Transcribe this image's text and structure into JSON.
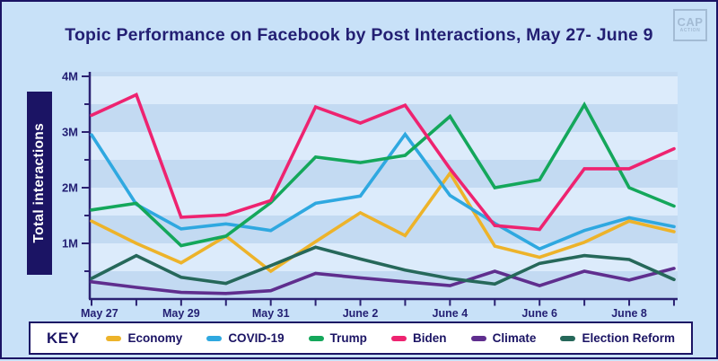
{
  "header": {
    "title": "Topic Performance on Facebook by Post Interactions, May 27- June 9",
    "logo_line1": "CAP",
    "logo_line2": "ACTION"
  },
  "legend": {
    "key_label": "KEY"
  },
  "chart_data": {
    "type": "line",
    "title": "Topic Performance on Facebook by Post Interactions, May 27- June 9",
    "ylabel": "Total interactions",
    "xlabel": "",
    "x": [
      "May 27",
      "May 28",
      "May 29",
      "May 30",
      "May 31",
      "June 1",
      "June 2",
      "June 3",
      "June 4",
      "June 5",
      "June 6",
      "June 7",
      "June 8",
      "June 9"
    ],
    "x_tick_labels_shown": [
      "May 27",
      "May 29",
      "May 31",
      "June 2",
      "June 4",
      "June 6",
      "June 8"
    ],
    "y_tick_labels": [
      "1M",
      "2M",
      "3M",
      "4M"
    ],
    "ylim": [
      0,
      4.1
    ],
    "units": "millions of interactions",
    "grid": "alternating horizontal bands every 0.5M",
    "legend_position": "bottom",
    "series": [
      {
        "name": "Economy",
        "color": "#edb32a",
        "values": [
          1.4,
          1.0,
          0.65,
          1.13,
          0.5,
          1.03,
          1.55,
          1.14,
          2.26,
          0.95,
          0.75,
          1.02,
          1.4,
          1.21
        ]
      },
      {
        "name": "COVID-19",
        "color": "#2fa8e0",
        "values": [
          2.95,
          1.7,
          1.26,
          1.35,
          1.23,
          1.72,
          1.85,
          2.96,
          1.86,
          1.36,
          0.9,
          1.23,
          1.46,
          1.3
        ]
      },
      {
        "name": "Trump",
        "color": "#14a75b",
        "values": [
          1.6,
          1.72,
          0.96,
          1.13,
          1.73,
          2.55,
          2.45,
          2.58,
          3.28,
          2.0,
          2.14,
          3.49,
          2.0,
          1.67
        ]
      },
      {
        "name": "Biden",
        "color": "#ee2370",
        "values": [
          3.3,
          3.67,
          1.47,
          1.51,
          1.77,
          3.45,
          3.16,
          3.48,
          2.34,
          1.32,
          1.25,
          2.34,
          2.34,
          2.7
        ]
      },
      {
        "name": "Climate",
        "color": "#5f2e8e",
        "values": [
          0.31,
          0.21,
          0.12,
          0.1,
          0.15,
          0.46,
          0.38,
          0.31,
          0.24,
          0.5,
          0.24,
          0.5,
          0.34,
          0.55
        ]
      },
      {
        "name": "Election Reform",
        "color": "#26685a",
        "values": [
          0.37,
          0.78,
          0.39,
          0.28,
          0.6,
          0.93,
          0.72,
          0.52,
          0.37,
          0.27,
          0.64,
          0.78,
          0.71,
          0.35
        ]
      }
    ],
    "band_colors": {
      "light": "#dcebfb",
      "dark": "#c3daf2"
    },
    "axis_color": "#2b2171",
    "tick_label_color": "#231f73"
  }
}
